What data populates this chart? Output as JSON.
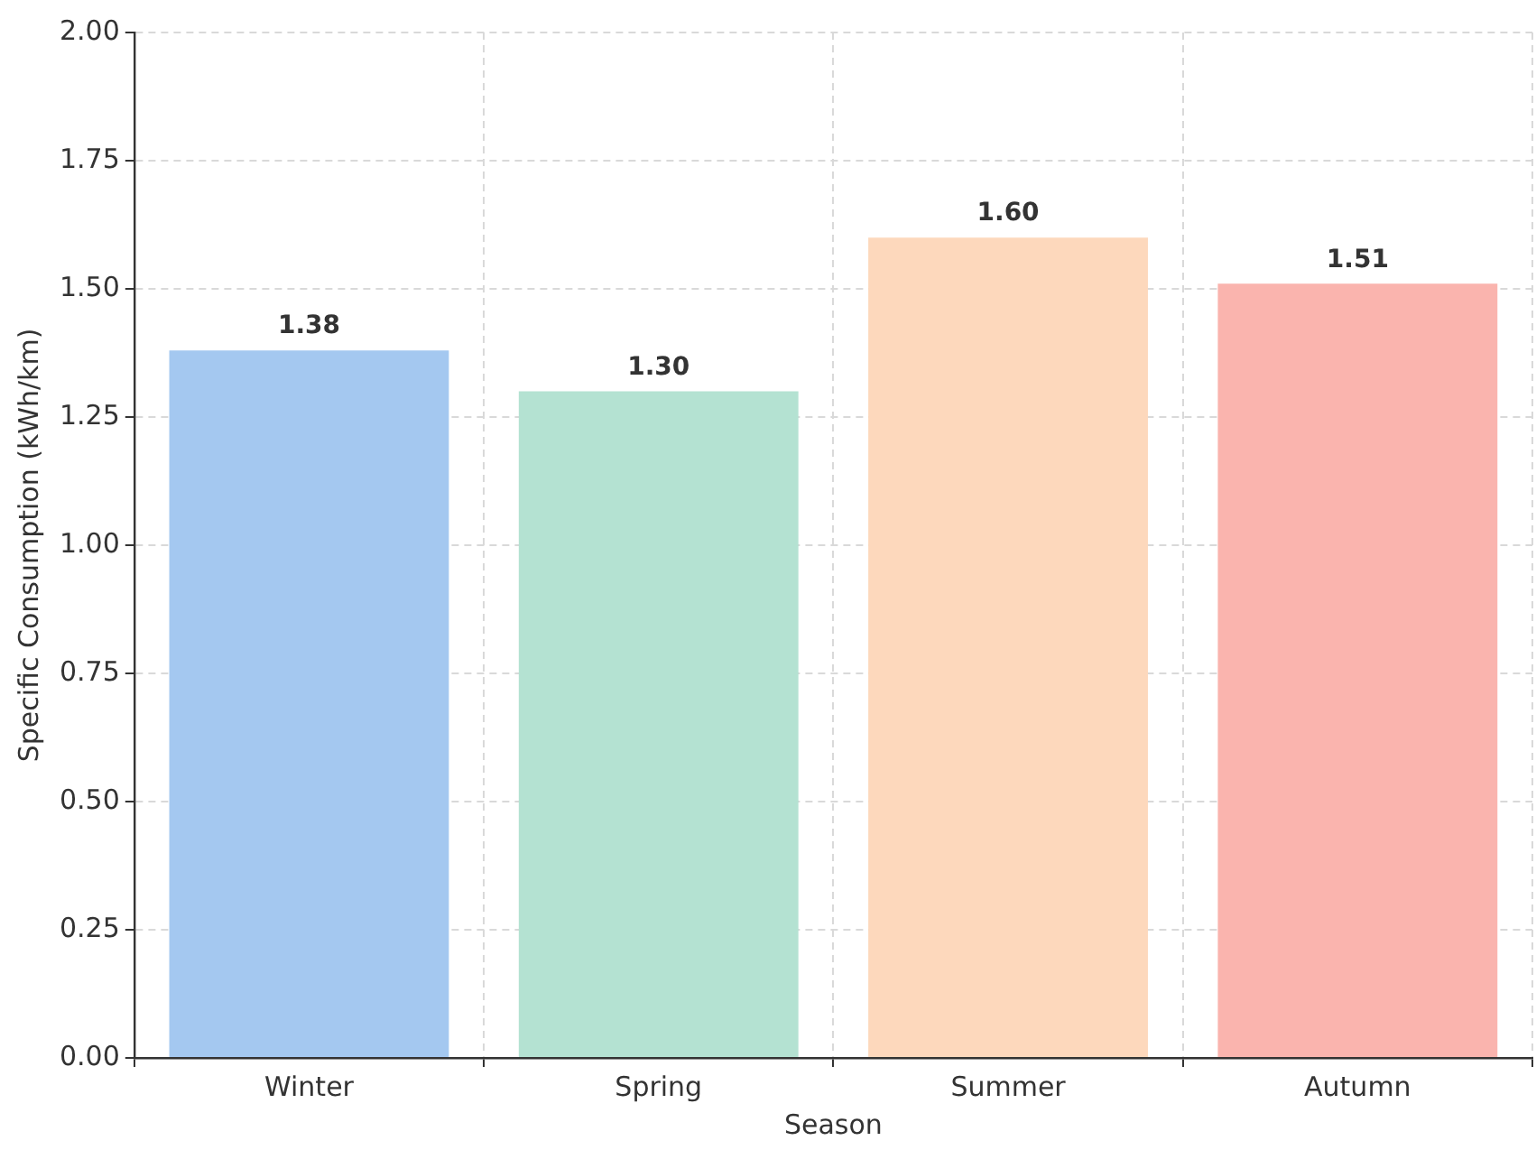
{
  "chart_data": {
    "type": "bar",
    "xlabel": "Season",
    "ylabel": "Specific Consumption (kWh/km)",
    "categories": [
      "Winter",
      "Spring",
      "Summer",
      "Autumn"
    ],
    "values": [
      1.38,
      1.3,
      1.6,
      1.51
    ],
    "colors": [
      "#a4c8f0",
      "#b4e2d2",
      "#fdd8bc",
      "#fab4ae"
    ],
    "ylim": [
      0,
      2
    ],
    "yticks": [
      {
        "value": 0,
        "label": "0.00"
      },
      0.25,
      {
        "value": 0.5,
        "label": "0.50"
      },
      0.75,
      {
        "value": 1,
        "label": "1.00"
      },
      1.25,
      {
        "value": 1.5,
        "label": "1.50"
      },
      1.75,
      {
        "value": 2,
        "label": "2.00"
      }
    ],
    "value_labels": [
      "1.38",
      "1.30",
      "1.60",
      "1.51"
    ],
    "grid": true
  }
}
